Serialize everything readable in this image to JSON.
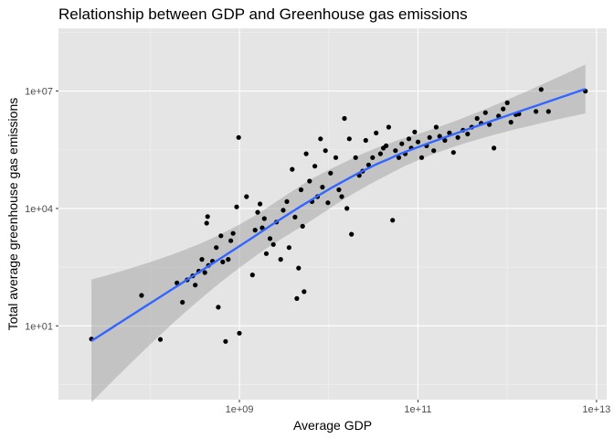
{
  "chart_data": {
    "type": "scatter",
    "title": "Relationship between GDP and Greenhouse gas emissions",
    "xlabel": "Average GDP",
    "ylabel": "Total average greenhouse gas emissions",
    "x_scale": "log10",
    "y_scale": "log10",
    "xlim": [
      9400000.0,
      13000000000000.0
    ],
    "ylim": [
      0.13,
      400000000.0
    ],
    "x_ticks": [
      {
        "value": 1000000000.0,
        "label": "1e+09"
      },
      {
        "value": 100000000000.0,
        "label": "1e+11"
      },
      {
        "value": 10000000000000.0,
        "label": "1e+13"
      }
    ],
    "y_ticks": [
      {
        "value": 10.0,
        "label": "1e+01"
      },
      {
        "value": 10000.0,
        "label": "1e+04"
      },
      {
        "value": 10000000.0,
        "label": "1e+07"
      }
    ],
    "grid": true,
    "colors": {
      "panel": "#e5e5e5",
      "grid_major": "#ffffff",
      "points": "#000000",
      "smooth_line": "#3366ff",
      "ribbon": "#999999"
    },
    "points": [
      {
        "x": 22000000.0,
        "y": 4.6
      },
      {
        "x": 80000000.0,
        "y": 60
      },
      {
        "x": 130000000.0,
        "y": 4.5
      },
      {
        "x": 200000000.0,
        "y": 125
      },
      {
        "x": 230000000.0,
        "y": 40
      },
      {
        "x": 260000000.0,
        "y": 150
      },
      {
        "x": 300000000.0,
        "y": 190
      },
      {
        "x": 320000000.0,
        "y": 110
      },
      {
        "x": 350000000.0,
        "y": 250
      },
      {
        "x": 380000000.0,
        "y": 500
      },
      {
        "x": 410000000.0,
        "y": 230
      },
      {
        "x": 430000000.0,
        "y": 4200
      },
      {
        "x": 440000000.0,
        "y": 6200
      },
      {
        "x": 450000000.0,
        "y": 350
      },
      {
        "x": 500000000.0,
        "y": 450
      },
      {
        "x": 550000000.0,
        "y": 1000
      },
      {
        "x": 580000000.0,
        "y": 30
      },
      {
        "x": 620000000.0,
        "y": 2000
      },
      {
        "x": 650000000.0,
        "y": 430
      },
      {
        "x": 700000000.0,
        "y": 4.0
      },
      {
        "x": 750000000.0,
        "y": 500
      },
      {
        "x": 800000000.0,
        "y": 1500
      },
      {
        "x": 850000000.0,
        "y": 2300
      },
      {
        "x": 930000000.0,
        "y": 11000
      },
      {
        "x": 980000000.0,
        "y": 650000.0
      },
      {
        "x": 1000000000.0,
        "y": 6.5
      },
      {
        "x": 1200000000.0,
        "y": 20000
      },
      {
        "x": 1400000000.0,
        "y": 200
      },
      {
        "x": 1500000000.0,
        "y": 2800
      },
      {
        "x": 1600000000.0,
        "y": 8000
      },
      {
        "x": 1700000000.0,
        "y": 13000
      },
      {
        "x": 1800000000.0,
        "y": 3200
      },
      {
        "x": 1900000000.0,
        "y": 5500
      },
      {
        "x": 2000000000.0,
        "y": 700
      },
      {
        "x": 2200000000.0,
        "y": 1700
      },
      {
        "x": 2400000000.0,
        "y": 1200
      },
      {
        "x": 2600000000.0,
        "y": 4500
      },
      {
        "x": 2900000000.0,
        "y": 500
      },
      {
        "x": 3100000000.0,
        "y": 9000
      },
      {
        "x": 3400000000.0,
        "y": 15000
      },
      {
        "x": 3600000000.0,
        "y": 1000
      },
      {
        "x": 3900000000.0,
        "y": 100000.0
      },
      {
        "x": 4200000000.0,
        "y": 6000
      },
      {
        "x": 4400000000.0,
        "y": 50
      },
      {
        "x": 4600000000.0,
        "y": 300
      },
      {
        "x": 4900000000.0,
        "y": 30000
      },
      {
        "x": 5100000000.0,
        "y": 3500
      },
      {
        "x": 5300000000.0,
        "y": 75
      },
      {
        "x": 5600000000.0,
        "y": 250000.0
      },
      {
        "x": 6100000000.0,
        "y": 50000
      },
      {
        "x": 6500000000.0,
        "y": 15000
      },
      {
        "x": 7000000000.0,
        "y": 120000.0
      },
      {
        "x": 7500000000.0,
        "y": 20000
      },
      {
        "x": 8100000000.0,
        "y": 600000.0
      },
      {
        "x": 8500000000.0,
        "y": 35000
      },
      {
        "x": 9200000000.0,
        "y": 300000.0
      },
      {
        "x": 9800000000.0,
        "y": 14000
      },
      {
        "x": 10500000000.0,
        "y": 80000
      },
      {
        "x": 12000000000.0,
        "y": 200000.0
      },
      {
        "x": 13000000000.0,
        "y": 30000
      },
      {
        "x": 14000000000.0,
        "y": 20000
      },
      {
        "x": 15000000000.0,
        "y": 2000000.0
      },
      {
        "x": 16000000000.0,
        "y": 10000
      },
      {
        "x": 17000000000.0,
        "y": 600000.0
      },
      {
        "x": 18000000000.0,
        "y": 2200
      },
      {
        "x": 20000000000.0,
        "y": 200000.0
      },
      {
        "x": 22000000000.0,
        "y": 70000
      },
      {
        "x": 24000000000.0,
        "y": 90000
      },
      {
        "x": 26000000000.0,
        "y": 550000.0
      },
      {
        "x": 28000000000.0,
        "y": 130000.0
      },
      {
        "x": 31000000000.0,
        "y": 200000.0
      },
      {
        "x": 34000000000.0,
        "y": 850000.0
      },
      {
        "x": 38000000000.0,
        "y": 250000.0
      },
      {
        "x": 41000000000.0,
        "y": 350000.0
      },
      {
        "x": 44000000000.0,
        "y": 400000.0
      },
      {
        "x": 47000000000.0,
        "y": 1200000.0
      },
      {
        "x": 52000000000.0,
        "y": 5000
      },
      {
        "x": 56000000000.0,
        "y": 300000.0
      },
      {
        "x": 61000000000.0,
        "y": 200000.0
      },
      {
        "x": 66000000000.0,
        "y": 450000.0
      },
      {
        "x": 72000000000.0,
        "y": 250000.0
      },
      {
        "x": 79000000000.0,
        "y": 600000.0
      },
      {
        "x": 84000000000.0,
        "y": 350000.0
      },
      {
        "x": 92000000000.0,
        "y": 900000.0
      },
      {
        "x": 100000000000.0,
        "y": 500000.0
      },
      {
        "x": 110000000000.0,
        "y": 200000.0
      },
      {
        "x": 125000000000.0,
        "y": 400000.0
      },
      {
        "x": 135000000000.0,
        "y": 650000.0
      },
      {
        "x": 150000000000.0,
        "y": 300000.0
      },
      {
        "x": 160000000000.0,
        "y": 1200000.0
      },
      {
        "x": 175000000000.0,
        "y": 700000.0
      },
      {
        "x": 200000000000.0,
        "y": 550000.0
      },
      {
        "x": 225000000000.0,
        "y": 850000.0
      },
      {
        "x": 250000000000.0,
        "y": 270000.0
      },
      {
        "x": 280000000000.0,
        "y": 650000.0
      },
      {
        "x": 320000000000.0,
        "y": 1000000.0
      },
      {
        "x": 360000000000.0,
        "y": 800000.0
      },
      {
        "x": 400000000000.0,
        "y": 1200000.0
      },
      {
        "x": 460000000000.0,
        "y": 2000000.0
      },
      {
        "x": 510000000000.0,
        "y": 1500000.0
      },
      {
        "x": 570000000000.0,
        "y": 2800000.0
      },
      {
        "x": 630000000000.0,
        "y": 1400000.0
      },
      {
        "x": 710000000000.0,
        "y": 350000.0
      },
      {
        "x": 800000000000.0,
        "y": 2300000.0
      },
      {
        "x": 900000000000.0,
        "y": 3500000.0
      },
      {
        "x": 1000000000000.0,
        "y": 5000000.0
      },
      {
        "x": 1100000000000.0,
        "y": 1600000.0
      },
      {
        "x": 1250000000000.0,
        "y": 2500000.0
      },
      {
        "x": 1350000000000.0,
        "y": 2600000.0
      },
      {
        "x": 2100000000000.0,
        "y": 3000000.0
      },
      {
        "x": 2400000000000.0,
        "y": 11000000.0
      },
      {
        "x": 2900000000000.0,
        "y": 3000000.0
      },
      {
        "x": 7500000000000.0,
        "y": 10000000.0
      }
    ]
  }
}
